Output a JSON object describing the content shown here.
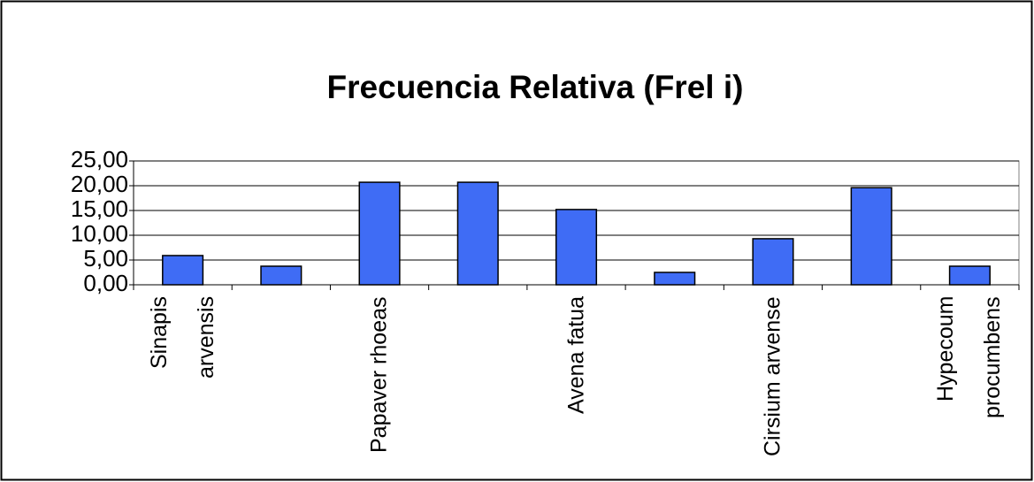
{
  "chart_data": {
    "type": "bar",
    "title": "Frecuencia Relativa (Frel i)",
    "categories": [
      "Sinapis arvensis",
      null,
      "Papaver rhoeas",
      null,
      "Avena fatua",
      null,
      "Cirsium arvense",
      null,
      "Hypecoum procumbens"
    ],
    "values": [
      5.9,
      3.75,
      20.7,
      20.7,
      15.2,
      2.5,
      9.3,
      19.6,
      3.75
    ],
    "color": "#3f6cf5",
    "ylim": [
      0,
      25
    ],
    "yticks": [
      {
        "value": 0,
        "label": "0,00"
      },
      {
        "value": 5,
        "label": "5,00"
      },
      {
        "value": 10,
        "label": "10,00"
      },
      {
        "value": 15,
        "label": "15,00"
      },
      {
        "value": 20,
        "label": "20,00"
      },
      {
        "value": 25,
        "label": "25,00"
      }
    ],
    "grid": true
  }
}
